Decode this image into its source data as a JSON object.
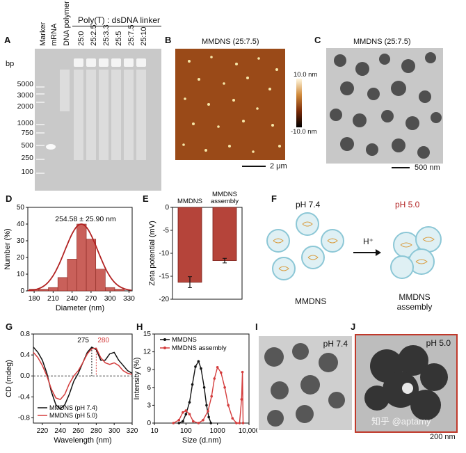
{
  "panels": {
    "A": {
      "letter": "A",
      "bp_label": "bp",
      "lanes": [
        "Marker",
        "mRNA",
        "DNA polymer",
        "25:0",
        "25:2.5",
        "25:3.3",
        "25:5",
        "25:7.5",
        "25:10"
      ],
      "group_label": "Poly(T) : dsDNA linker",
      "markers": [
        "5000",
        "3000",
        "2000",
        "1000",
        "750",
        "500",
        "250",
        "100"
      ]
    },
    "B": {
      "letter": "B",
      "title": "MMDNS (25:7.5)",
      "scale_bar": "2 μm",
      "cbar_top": "10.0 nm",
      "cbar_bottom": "-10.0 nm"
    },
    "C": {
      "letter": "C",
      "title": "MMDNS (25:7.5)",
      "scale_bar": "500 nm"
    },
    "D": {
      "letter": "D",
      "annotation": "254.58 ± 25.90 nm"
    },
    "E": {
      "letter": "E"
    },
    "F": {
      "letter": "F",
      "left_ph": "pH 7.4",
      "right_ph": "pH 5.0",
      "arrow_label": "H⁺",
      "left_caption": "MMDNS",
      "right_caption_1": "MMDNS",
      "right_caption_2": "assembly"
    },
    "G": {
      "letter": "G",
      "peak1": "275",
      "peak2": "280"
    },
    "H": {
      "letter": "H"
    },
    "I": {
      "letter": "I",
      "ph": "pH 7.4"
    },
    "J": {
      "letter": "J",
      "ph": "pH 5.0",
      "scale_bar": "200 nm",
      "watermark": "知乎 @aptamy"
    }
  },
  "colors": {
    "red": "#c0392b",
    "dark_red": "#b22222",
    "black": "#111111",
    "afm_bg": "#9a4a18"
  },
  "chart_data": [
    {
      "panel": "D",
      "type": "bar",
      "xlabel": "Diameter (nm)",
      "ylabel": "Number (%)",
      "xlim": [
        170,
        335
      ],
      "ylim": [
        0,
        50
      ],
      "xticks": [
        "180",
        "210",
        "240",
        "270",
        "300",
        "330"
      ],
      "yticks": [
        "0",
        "10",
        "20",
        "30",
        "40",
        "50"
      ],
      "bin_centers": [
        180,
        195,
        210,
        225,
        240,
        255,
        270,
        285,
        300,
        315,
        330
      ],
      "values": [
        1,
        1,
        2,
        8,
        19,
        40,
        31,
        13,
        2,
        1,
        0
      ],
      "gaussian": {
        "mean": 254.58,
        "sd": 25.9,
        "peak": 40
      }
    },
    {
      "panel": "E",
      "type": "bar",
      "categories": [
        "MMDNS",
        "MMDNS\nassembly"
      ],
      "values": [
        -16.3,
        -11.6
      ],
      "errors": [
        1.2,
        0.5
      ],
      "ylabel": "Zeta potential (mV)",
      "ylim": [
        -20,
        0
      ],
      "yticks": [
        "0",
        "-5",
        "-10",
        "-15",
        "-20"
      ]
    },
    {
      "panel": "G",
      "type": "line",
      "xlabel": "Wavelength (nm)",
      "ylabel": "CD (mdeg)",
      "xlim": [
        210,
        320
      ],
      "ylim": [
        -0.9,
        0.8
      ],
      "xticks": [
        "220",
        "240",
        "260",
        "280",
        "300",
        "320"
      ],
      "yticks": [
        "-0.8",
        "-0.4",
        "0.0",
        "0.4",
        "0.8"
      ],
      "series": [
        {
          "name": "MMDNS (pH 7.4)",
          "color": "#111111",
          "x": [
            210,
            215,
            220,
            225,
            230,
            235,
            240,
            245,
            250,
            255,
            260,
            265,
            270,
            275,
            280,
            285,
            290,
            295,
            300,
            305,
            310,
            315,
            320
          ],
          "y": [
            0.55,
            0.45,
            0.3,
            0.05,
            -0.3,
            -0.55,
            -0.63,
            -0.55,
            -0.35,
            -0.1,
            0.05,
            0.25,
            0.45,
            0.55,
            0.5,
            0.3,
            0.3,
            0.42,
            0.45,
            0.3,
            0.2,
            0.1,
            0.05
          ]
        },
        {
          "name": "MMDNS (pH 5.0)",
          "color": "#d43c3c",
          "x": [
            210,
            215,
            220,
            225,
            230,
            235,
            240,
            245,
            250,
            255,
            260,
            265,
            270,
            275,
            280,
            285,
            290,
            295,
            300,
            305,
            310,
            315,
            320
          ],
          "y": [
            0.45,
            0.35,
            0.2,
            0.0,
            -0.25,
            -0.42,
            -0.45,
            -0.35,
            -0.15,
            0.0,
            0.1,
            0.25,
            0.42,
            0.52,
            0.53,
            0.35,
            0.25,
            0.22,
            0.25,
            0.2,
            0.1,
            0.05,
            0.03
          ]
        }
      ]
    },
    {
      "panel": "H",
      "type": "line",
      "xlabel": "Size (d.nm)",
      "ylabel": "Intensity (%)",
      "xscale": "log",
      "xlim": [
        10,
        10000
      ],
      "ylim": [
        0,
        15
      ],
      "xticks": [
        "10",
        "100",
        "1000",
        "10,000"
      ],
      "yticks": [
        "0",
        "3",
        "6",
        "9",
        "12",
        "15"
      ],
      "series": [
        {
          "name": "MMDNS",
          "color": "#111111",
          "x": [
            60,
            80,
            100,
            130,
            160,
            200,
            250,
            300,
            380,
            450,
            530,
            620
          ],
          "y": [
            0,
            0.3,
            1.5,
            3.5,
            6.5,
            9.5,
            10.4,
            9.2,
            6,
            3,
            1,
            0
          ]
        },
        {
          "name": "MMDNS assembly",
          "color": "#d43c3c",
          "x": [
            40,
            60,
            80,
            100,
            130,
            170,
            250,
            350,
            500,
            650,
            800,
            1000,
            1300,
            1700,
            2200,
            3000,
            4000,
            5000,
            5800,
            6200,
            6500
          ],
          "y": [
            0,
            0.5,
            1.8,
            2.1,
            1.5,
            0.3,
            0,
            0.5,
            2,
            4.5,
            7.5,
            9.4,
            8.5,
            6,
            3,
            0.8,
            0,
            0,
            4,
            8.6,
            0
          ]
        }
      ]
    }
  ]
}
